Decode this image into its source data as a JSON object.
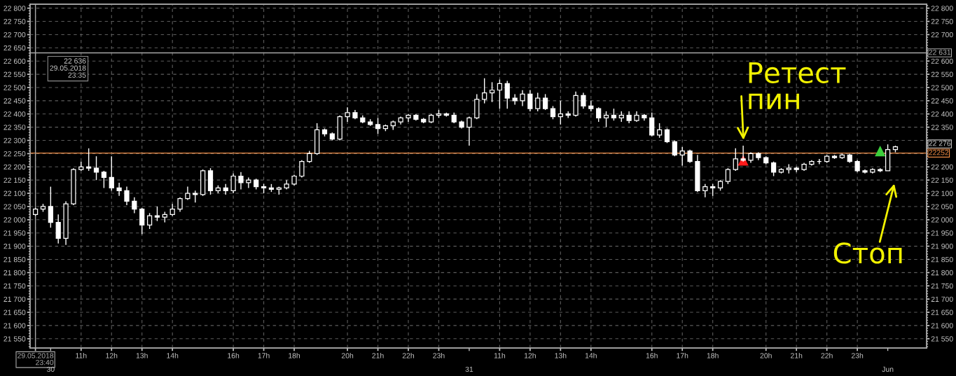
{
  "chart_data": {
    "type": "candlestick",
    "color": "#ffffff",
    "categories": [
      "29.05.2018\n23:40",
      null,
      "\n30",
      null,
      null,
      null,
      "11h",
      null,
      null,
      null,
      "12h",
      null,
      null,
      null,
      "13h",
      null,
      null,
      null,
      "14h",
      null,
      null,
      null,
      null,
      null,
      null,
      null,
      "16h",
      null,
      null,
      null,
      "17h",
      null,
      null,
      null,
      "18h",
      null,
      null,
      null,
      null,
      null,
      null,
      "20h",
      null,
      null,
      null,
      "21h",
      null,
      null,
      null,
      "22h",
      null,
      null,
      null,
      "23h",
      null,
      null,
      null,
      "\n31",
      null,
      null,
      null,
      "11h",
      null,
      null,
      null,
      "12h",
      null,
      null,
      null,
      "13h",
      null,
      null,
      null,
      "14h",
      null,
      null,
      null,
      null,
      null,
      null,
      null,
      "16h",
      null,
      null,
      null,
      "17h",
      null,
      null,
      null,
      "18h",
      null,
      null,
      null,
      null,
      null,
      null,
      "20h",
      null,
      null,
      null,
      "21h",
      null,
      null,
      null,
      "22h",
      null,
      null,
      null,
      "23h",
      null,
      null,
      null,
      "\nJun",
      null
    ],
    "ohlc": [
      [
        22020,
        22045,
        22015,
        22040
      ],
      [
        22040,
        22060,
        22030,
        22050
      ],
      [
        22050,
        22125,
        21970,
        21990
      ],
      [
        21990,
        22020,
        21910,
        21930
      ],
      [
        21930,
        22070,
        21905,
        22060
      ],
      [
        22060,
        22195,
        22055,
        22190
      ],
      [
        22190,
        22220,
        22185,
        22200
      ],
      [
        22200,
        22270,
        22185,
        22195
      ],
      [
        22195,
        22240,
        22150,
        22180
      ],
      [
        22180,
        22185,
        22120,
        22160
      ],
      [
        22160,
        22240,
        22110,
        22120
      ],
      [
        22120,
        22140,
        22090,
        22110
      ],
      [
        22110,
        22125,
        22055,
        22070
      ],
      [
        22070,
        22085,
        22025,
        22040
      ],
      [
        22040,
        22045,
        21945,
        21980
      ],
      [
        21980,
        22025,
        21965,
        22015
      ],
      [
        22015,
        22050,
        21995,
        22010
      ],
      [
        22010,
        22030,
        21990,
        22020
      ],
      [
        22020,
        22060,
        22015,
        22040
      ],
      [
        22040,
        22085,
        22030,
        22080
      ],
      [
        22080,
        22125,
        22075,
        22100
      ],
      [
        22100,
        22110,
        22065,
        22095
      ],
      [
        22095,
        22190,
        22090,
        22185
      ],
      [
        22185,
        22195,
        22095,
        22110
      ],
      [
        22110,
        22130,
        22100,
        22120
      ],
      [
        22120,
        22135,
        22095,
        22110
      ],
      [
        22110,
        22175,
        22100,
        22165
      ],
      [
        22165,
        22180,
        22115,
        22140
      ],
      [
        22140,
        22160,
        22120,
        22150
      ],
      [
        22150,
        22155,
        22115,
        22125
      ],
      [
        22125,
        22135,
        22100,
        22120
      ],
      [
        22120,
        22135,
        22105,
        22115
      ],
      [
        22115,
        22125,
        22095,
        22120
      ],
      [
        22120,
        22150,
        22115,
        22135
      ],
      [
        22135,
        22170,
        22130,
        22165
      ],
      [
        22165,
        22225,
        22160,
        22220
      ],
      [
        22220,
        22260,
        22215,
        22250
      ],
      [
        22250,
        22365,
        22245,
        22340
      ],
      [
        22340,
        22345,
        22315,
        22325
      ],
      [
        22325,
        22330,
        22300,
        22305
      ],
      [
        22305,
        22395,
        22300,
        22390
      ],
      [
        22390,
        22425,
        22370,
        22405
      ],
      [
        22405,
        22415,
        22380,
        22385
      ],
      [
        22385,
        22395,
        22365,
        22370
      ],
      [
        22370,
        22380,
        22355,
        22360
      ],
      [
        22360,
        22385,
        22325,
        22345
      ],
      [
        22345,
        22360,
        22335,
        22355
      ],
      [
        22355,
        22375,
        22340,
        22370
      ],
      [
        22370,
        22390,
        22360,
        22385
      ],
      [
        22385,
        22400,
        22370,
        22395
      ],
      [
        22395,
        22400,
        22375,
        22380
      ],
      [
        22380,
        22385,
        22365,
        22370
      ],
      [
        22370,
        22400,
        22365,
        22395
      ],
      [
        22395,
        22415,
        22385,
        22400
      ],
      [
        22400,
        22405,
        22390,
        22395
      ],
      [
        22395,
        22405,
        22365,
        22370
      ],
      [
        22370,
        22375,
        22345,
        22350
      ],
      [
        22350,
        22390,
        22280,
        22385
      ],
      [
        22385,
        22475,
        22380,
        22455
      ],
      [
        22455,
        22535,
        22440,
        22480
      ],
      [
        22480,
        22520,
        22445,
        22490
      ],
      [
        22490,
        22530,
        22420,
        22515
      ],
      [
        22515,
        22525,
        22420,
        22460
      ],
      [
        22460,
        22475,
        22435,
        22450
      ],
      [
        22450,
        22490,
        22430,
        22475
      ],
      [
        22475,
        22490,
        22410,
        22420
      ],
      [
        22420,
        22480,
        22410,
        22460
      ],
      [
        22460,
        22475,
        22415,
        22420
      ],
      [
        22420,
        22430,
        22380,
        22390
      ],
      [
        22390,
        22450,
        22360,
        22400
      ],
      [
        22400,
        22410,
        22385,
        22395
      ],
      [
        22395,
        22485,
        22390,
        22470
      ],
      [
        22470,
        22480,
        22420,
        22430
      ],
      [
        22430,
        22450,
        22410,
        22420
      ],
      [
        22420,
        22425,
        22370,
        22385
      ],
      [
        22385,
        22410,
        22350,
        22395
      ],
      [
        22395,
        22420,
        22375,
        22385
      ],
      [
        22385,
        22410,
        22370,
        22395
      ],
      [
        22395,
        22410,
        22365,
        22375
      ],
      [
        22375,
        22410,
        22370,
        22395
      ],
      [
        22395,
        22400,
        22375,
        22385
      ],
      [
        22385,
        22405,
        22315,
        22320
      ],
      [
        22320,
        22365,
        22310,
        22340
      ],
      [
        22340,
        22345,
        22290,
        22295
      ],
      [
        22295,
        22300,
        22240,
        22245
      ],
      [
        22245,
        22275,
        22205,
        22260
      ],
      [
        22260,
        22265,
        22215,
        22220
      ],
      [
        22220,
        22245,
        22105,
        22110
      ],
      [
        22110,
        22135,
        22085,
        22125
      ],
      [
        22125,
        22135,
        22090,
        22120
      ],
      [
        22120,
        22150,
        22110,
        22145
      ],
      [
        22145,
        22195,
        22135,
        22190
      ],
      [
        22190,
        22270,
        22185,
        22230
      ],
      [
        22230,
        22280,
        22220,
        22225
      ],
      [
        22225,
        22255,
        22215,
        22250
      ],
      [
        22250,
        22255,
        22225,
        22235
      ],
      [
        22235,
        22240,
        22210,
        22215
      ],
      [
        22215,
        22220,
        22165,
        22180
      ],
      [
        22180,
        22195,
        22175,
        22190
      ],
      [
        22190,
        22210,
        22175,
        22195
      ],
      [
        22195,
        22200,
        22180,
        22190
      ],
      [
        22190,
        22215,
        22185,
        22210
      ],
      [
        22210,
        22225,
        22205,
        22220
      ],
      [
        22220,
        22230,
        22210,
        22220
      ],
      [
        22220,
        22245,
        22215,
        22240
      ],
      [
        22240,
        22245,
        22230,
        22235
      ],
      [
        22235,
        22250,
        22230,
        22245
      ],
      [
        22245,
        22250,
        22215,
        22220
      ],
      [
        22220,
        22225,
        22180,
        22185
      ],
      [
        22185,
        22190,
        22175,
        22180
      ],
      [
        22180,
        22195,
        22175,
        22190
      ],
      [
        22190,
        22195,
        22180,
        22185
      ],
      [
        22185,
        22285,
        22185,
        22265
      ],
      [
        22265,
        22280,
        22255,
        22276
      ]
    ],
    "series": [
      {
        "type": "scatter",
        "color": "#ff1a1a",
        "marker": "triangle",
        "values": [
          null,
          null,
          null,
          null,
          null,
          null,
          null,
          null,
          null,
          null,
          null,
          null,
          null,
          null,
          null,
          null,
          null,
          null,
          null,
          null,
          null,
          null,
          null,
          null,
          null,
          null,
          null,
          null,
          null,
          null,
          null,
          null,
          null,
          null,
          null,
          null,
          null,
          null,
          null,
          null,
          null,
          null,
          null,
          null,
          null,
          null,
          null,
          null,
          null,
          null,
          null,
          null,
          null,
          null,
          null,
          null,
          null,
          null,
          null,
          null,
          null,
          null,
          null,
          null,
          null,
          null,
          null,
          null,
          null,
          null,
          null,
          null,
          null,
          null,
          null,
          null,
          null,
          null,
          null,
          null,
          null,
          null,
          null,
          null,
          null,
          null,
          null,
          null,
          null,
          null,
          null,
          null,
          null,
          22225,
          null,
          null,
          null,
          null,
          null,
          null,
          null,
          null,
          null,
          null,
          null,
          null,
          null,
          null,
          null,
          null,
          null,
          null,
          null,
          null
        ]
      },
      {
        "type": "scatter",
        "color": "#3ccf3c",
        "marker": "triangle",
        "values": [
          null,
          null,
          null,
          null,
          null,
          null,
          null,
          null,
          null,
          null,
          null,
          null,
          null,
          null,
          null,
          null,
          null,
          null,
          null,
          null,
          null,
          null,
          null,
          null,
          null,
          null,
          null,
          null,
          null,
          null,
          null,
          null,
          null,
          null,
          null,
          null,
          null,
          null,
          null,
          null,
          null,
          null,
          null,
          null,
          null,
          null,
          null,
          null,
          null,
          null,
          null,
          null,
          null,
          null,
          null,
          null,
          null,
          null,
          null,
          null,
          null,
          null,
          null,
          null,
          null,
          null,
          null,
          null,
          null,
          null,
          null,
          null,
          null,
          null,
          null,
          null,
          null,
          null,
          null,
          null,
          null,
          null,
          null,
          null,
          null,
          null,
          null,
          null,
          null,
          null,
          null,
          null,
          null,
          null,
          null,
          null,
          null,
          null,
          null,
          null,
          null,
          null,
          null,
          null,
          null,
          null,
          null,
          null,
          null,
          null,
          null,
          22260,
          null,
          null
        ]
      }
    ],
    "ylim": [
      21515,
      22815
    ],
    "yticks": [
      {
        "value": 22800,
        "label": "22 800"
      },
      {
        "value": 22750,
        "label": "22 750"
      },
      {
        "value": 22700,
        "label": "22 700"
      },
      {
        "value": 22650,
        "label": "22 650"
      },
      {
        "value": 22600,
        "label": "22 600"
      },
      {
        "value": 22550,
        "label": "22 550"
      },
      {
        "value": 22500,
        "label": "22 500"
      },
      {
        "value": 22450,
        "label": "22 450"
      },
      {
        "value": 22400,
        "label": "22 400"
      },
      {
        "value": 22350,
        "label": "22 350"
      },
      {
        "value": 22300,
        "label": "22 300"
      },
      {
        "value": 22250,
        "label": "22 250"
      },
      {
        "value": 22200,
        "label": "22 200"
      },
      {
        "value": 22150,
        "label": "22 150"
      },
      {
        "value": 22100,
        "label": "22 100"
      },
      {
        "value": 22050,
        "label": "22 050"
      },
      {
        "value": 22000,
        "label": "22 000"
      },
      {
        "value": 21950,
        "label": "21 950"
      },
      {
        "value": 21900,
        "label": "21 900"
      },
      {
        "value": 21850,
        "label": "21 850"
      },
      {
        "value": 21800,
        "label": "21 800"
      },
      {
        "value": 21750,
        "label": "21 750"
      },
      {
        "value": 21700,
        "label": "21 700"
      },
      {
        "value": 21650,
        "label": "21 650"
      },
      {
        "value": 21600,
        "label": "21 600"
      },
      {
        "value": 21550,
        "label": "21 550"
      }
    ],
    "y2lim": [
      21515,
      22815
    ],
    "y2ticks": [
      {
        "value": 22800,
        "label": "22 800"
      },
      {
        "value": 22750,
        "label": "22 750"
      },
      {
        "value": 22700,
        "label": "22 700"
      },
      {
        "value": 22600,
        "label": "22 600"
      },
      {
        "value": 22550,
        "label": "22 550"
      },
      {
        "value": 22500,
        "label": "22 500"
      },
      {
        "value": 22450,
        "label": "22 450"
      },
      {
        "value": 22400,
        "label": "22 400"
      },
      {
        "value": 22350,
        "label": "22 350"
      },
      {
        "value": 22200,
        "label": "22 200"
      },
      {
        "value": 22150,
        "label": "22 150"
      },
      {
        "value": 22100,
        "label": "22 100"
      },
      {
        "value": 22050,
        "label": "22 050"
      },
      {
        "value": 22000,
        "label": "22 000"
      },
      {
        "value": 21950,
        "label": "21 950"
      },
      {
        "value": 21900,
        "label": "21 900"
      },
      {
        "value": 21850,
        "label": "21 850"
      },
      {
        "value": 21800,
        "label": "21 800"
      },
      {
        "value": 21750,
        "label": "21 750"
      },
      {
        "value": 21700,
        "label": "21 700"
      },
      {
        "value": 21650,
        "label": "21 650"
      },
      {
        "value": 21600,
        "label": "21 600"
      },
      {
        "value": 21550,
        "label": "21 550"
      }
    ],
    "grid": true,
    "ref_lines": [
      {
        "axis": "y",
        "value": 22631,
        "label": "22 631",
        "color": "#a8a8a8"
      },
      {
        "axis": "y",
        "value": 22252,
        "label": "22252",
        "color": "#ec8a44"
      },
      {
        "axis": "x",
        "value": "29.05.2018\n23:40",
        "color": "#a8a8a8"
      }
    ],
    "annotations": [
      "22 636\n29.05.2018\n23:35",
      "Ретест\nпин",
      "Стоп",
      "22 276"
    ]
  }
}
